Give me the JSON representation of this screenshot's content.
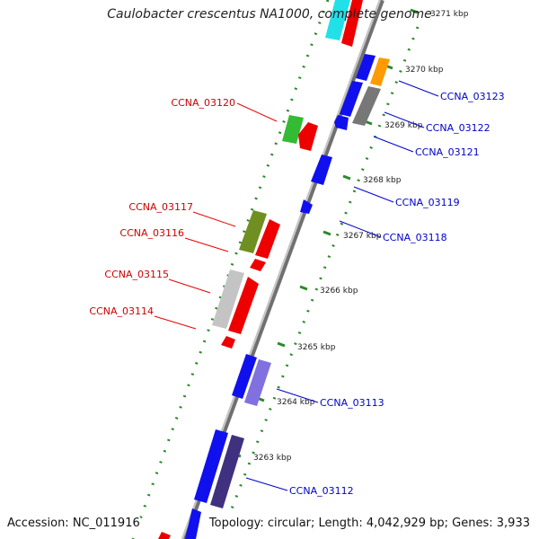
{
  "title": "Caulobacter crescentus NA1000, complete genome",
  "footer": {
    "accession": "Accession: NC_011916",
    "summary": "Topology: circular; Length: 4,042,929 bp; Genes: 3,933"
  },
  "colors": {
    "backbone": "#8a8a8a",
    "forward_label": "#d00000",
    "reverse_label": "#0000cc",
    "tick_dots": "#2a8a2a"
  },
  "ticks": [
    "3263 kbp",
    "3264 kbp",
    "3265 kbp",
    "3266 kbp",
    "3267 kbp",
    "3268 kbp",
    "3269 kbp",
    "3270 kbp",
    "3271 kbp"
  ],
  "genes_left": [
    {
      "label": "CCNA_03120"
    },
    {
      "label": "CCNA_03117"
    },
    {
      "label": "CCNA_03116"
    },
    {
      "label": "CCNA_03115"
    },
    {
      "label": "CCNA_03114"
    }
  ],
  "genes_right": [
    {
      "label": "CCNA_03123"
    },
    {
      "label": "CCNA_03122"
    },
    {
      "label": "CCNA_03121"
    },
    {
      "label": "CCNA_03119"
    },
    {
      "label": "CCNA_03118"
    },
    {
      "label": "CCNA_03113"
    },
    {
      "label": "CCNA_03112"
    }
  ]
}
